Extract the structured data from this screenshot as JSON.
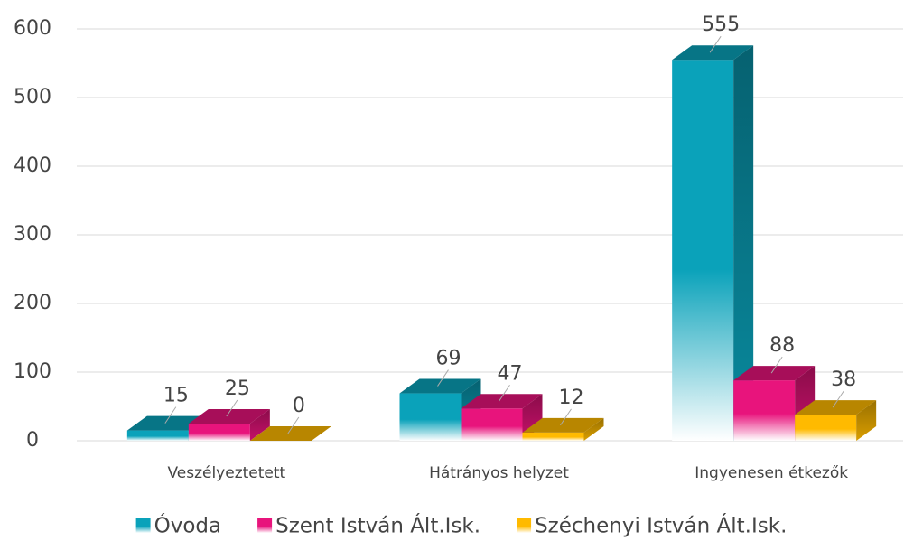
{
  "chart_data": {
    "type": "bar3d",
    "categories": [
      "Veszélyeztetett",
      "Hátrányos helyzet",
      "Ingyenesen étkezők"
    ],
    "series": [
      {
        "name": "Óvoda",
        "color": "#0aa2ba",
        "values": [
          15,
          69,
          555
        ]
      },
      {
        "name": "Szent István Ált.Isk.",
        "color": "#e8147c",
        "values": [
          25,
          47,
          88
        ]
      },
      {
        "name": "Széchenyi István Ált.Isk.",
        "color": "#ffba00",
        "values": [
          0,
          12,
          38
        ]
      }
    ],
    "ylim": [
      0,
      600
    ],
    "yticks": [
      0,
      100,
      200,
      300,
      400,
      500,
      600
    ],
    "grid": true,
    "legend": "bottom"
  }
}
